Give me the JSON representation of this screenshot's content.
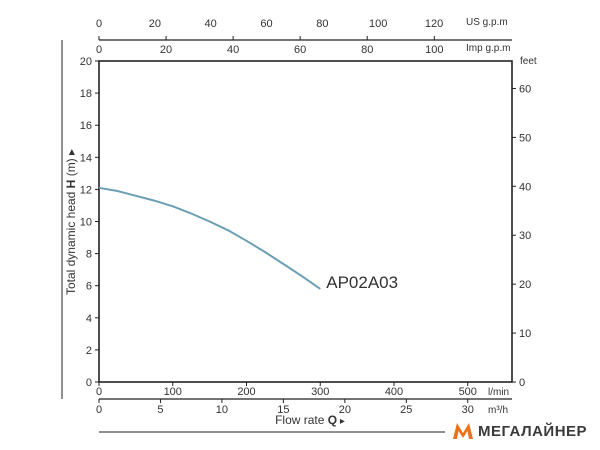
{
  "chart_data": {
    "type": "line",
    "series": [
      {
        "name": "AP02A03",
        "x": [
          0,
          25,
          50,
          75,
          100,
          125,
          150,
          175,
          200,
          225,
          250,
          275,
          300
        ],
        "y": [
          12.1,
          11.9,
          11.6,
          11.3,
          10.95,
          10.5,
          10.0,
          9.45,
          8.8,
          8.1,
          7.35,
          6.6,
          5.8
        ],
        "color": "#6a9fb3"
      }
    ],
    "x_axis_primary": {
      "unit": "l/min",
      "range": [
        0,
        560
      ],
      "ticks": [
        "0",
        "100",
        "200",
        "300",
        "400",
        "500"
      ]
    },
    "x_axis_m3h": {
      "unit": "m³/h",
      "ticks": [
        "0",
        "5",
        "10",
        "15",
        "20",
        "25",
        "30"
      ]
    },
    "x_axis_imp": {
      "unit": "Imp g.p.m",
      "ticks": [
        "0",
        "20",
        "40",
        "60",
        "80",
        "100"
      ]
    },
    "x_axis_us": {
      "unit": "US g.p.m",
      "ticks": [
        "0",
        "20",
        "40",
        "60",
        "80",
        "100",
        "120"
      ]
    },
    "y_axis_left": {
      "range": [
        0,
        20
      ],
      "ticks": [
        "0",
        "2",
        "4",
        "6",
        "8",
        "10",
        "12",
        "14",
        "16",
        "18",
        "20"
      ]
    },
    "y_axis_right": {
      "unit": "feet",
      "ticks": [
        "0",
        "10",
        "20",
        "30",
        "40",
        "50",
        "60"
      ]
    },
    "xlabel": {
      "text": "Flow rate ",
      "bold": "Q",
      "arrow": "▸"
    },
    "ylabel": {
      "text": "Total dynamic head ",
      "bold": "H",
      "unit": " (m)",
      "arrow": "▸"
    },
    "grid": false
  },
  "logo": {
    "text": "МЕГАЛАЙНЕР",
    "accent_color": "#e8731c"
  }
}
